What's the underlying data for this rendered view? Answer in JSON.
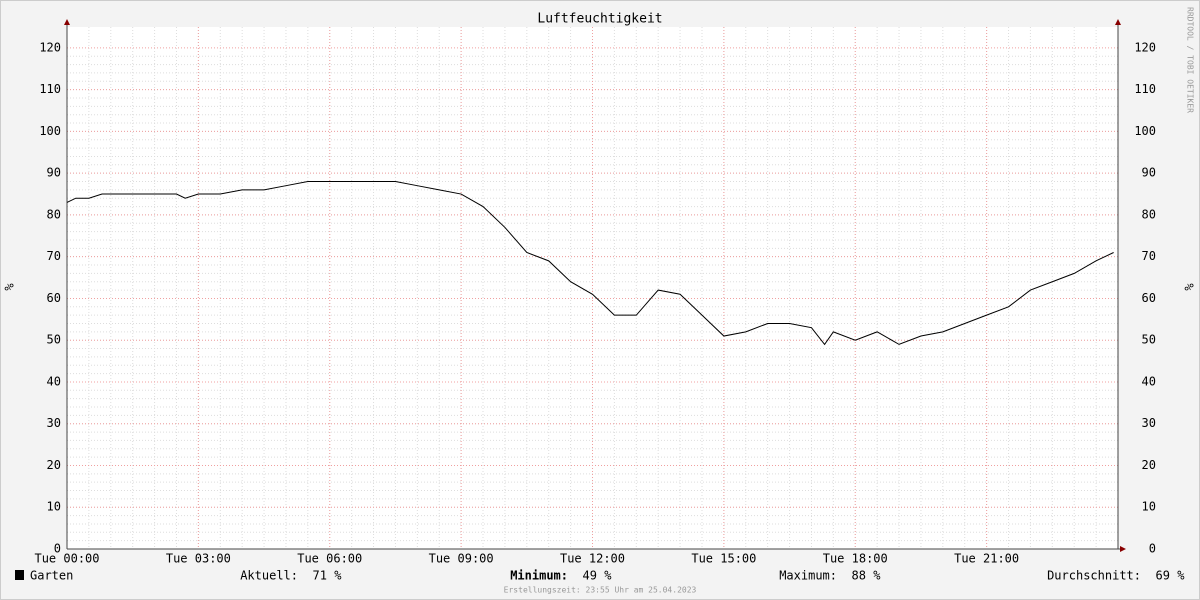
{
  "chart_data": {
    "type": "line",
    "title": "Luftfeuchtigkeit",
    "ylabel": "%",
    "watermark": "RRDTOOL / TOBI OETIKER",
    "footer": "Erstellungszeit: 23:55 Uhr am 25.04.2023",
    "xlim": [
      0,
      24
    ],
    "xticks": [
      {
        "value": 0,
        "label": "Tue 00:00"
      },
      {
        "value": 3,
        "label": "Tue 03:00"
      },
      {
        "value": 6,
        "label": "Tue 06:00"
      },
      {
        "value": 9,
        "label": "Tue 09:00"
      },
      {
        "value": 12,
        "label": "Tue 12:00"
      },
      {
        "value": 15,
        "label": "Tue 15:00"
      },
      {
        "value": 18,
        "label": "Tue 18:00"
      },
      {
        "value": 21,
        "label": "Tue 21:00"
      }
    ],
    "ylim": [
      0,
      125
    ],
    "yticks": [
      0,
      10,
      20,
      30,
      40,
      50,
      60,
      70,
      80,
      90,
      100,
      110,
      120
    ],
    "grid": true,
    "x": [
      0,
      0.2,
      0.5,
      0.8,
      1,
      1.5,
      2,
      2.5,
      2.7,
      3,
      3.5,
      4,
      4.5,
      5,
      5.5,
      6,
      6.5,
      7,
      7.5,
      8,
      8.5,
      9,
      9.5,
      10,
      10.5,
      11,
      11.5,
      12,
      12.5,
      13,
      13.5,
      14,
      14.5,
      15,
      15.5,
      16,
      16.5,
      17,
      17.3,
      17.5,
      18,
      18.5,
      19,
      19.5,
      20,
      20.5,
      21,
      21.5,
      22,
      22.5,
      23,
      23.5,
      23.9
    ],
    "series": [
      {
        "name": "Garten",
        "color": "#000000",
        "values": [
          83,
          84,
          84,
          85,
          85,
          85,
          85,
          85,
          84,
          85,
          85,
          86,
          86,
          87,
          88,
          88,
          88,
          88,
          88,
          87,
          86,
          85,
          82,
          77,
          71,
          69,
          64,
          61,
          56,
          56,
          62,
          61,
          56,
          51,
          52,
          54,
          54,
          53,
          49,
          52,
          50,
          52,
          49,
          51,
          52,
          54,
          56,
          58,
          62,
          64,
          66,
          69,
          71
        ]
      }
    ],
    "stats": [
      {
        "label": "Aktuell:",
        "value": "71 %"
      },
      {
        "label": "Minimum:",
        "value": "49 %"
      },
      {
        "label": "Maximum:",
        "value": "88 %"
      },
      {
        "label": "Durchschnitt:",
        "value": "69 %"
      }
    ]
  }
}
